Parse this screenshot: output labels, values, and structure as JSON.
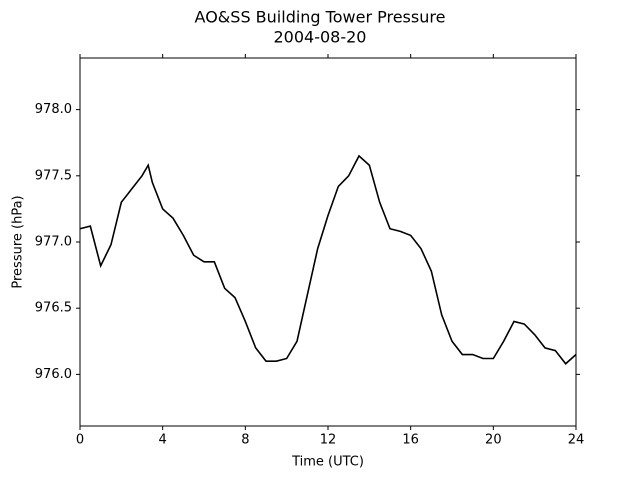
{
  "chart_data": {
    "type": "line",
    "title": "AO&SS Building Tower Pressure",
    "subtitle": "2004-08-20",
    "x_label": "Time (UTC)",
    "y_label": "Pressure (hPa)",
    "x": [
      0,
      0.5,
      1,
      1.5,
      2,
      2.5,
      3,
      3.3,
      3.5,
      4,
      4.5,
      5,
      5.5,
      6,
      6.5,
      7,
      7.5,
      8,
      8.5,
      9,
      9.5,
      10,
      10.5,
      11,
      11.5,
      12,
      12.5,
      13,
      13.5,
      14,
      14.5,
      15,
      15.5,
      16,
      16.5,
      17,
      17.5,
      18,
      18.5,
      19,
      19.5,
      20,
      20.5,
      21,
      21.5,
      22,
      22.5,
      23,
      23.5,
      24
    ],
    "series": [
      {
        "name": "Pressure",
        "color": "#000000",
        "values": [
          977.1,
          977.12,
          976.82,
          976.98,
          977.3,
          977.4,
          977.5,
          977.58,
          977.45,
          977.25,
          977.18,
          977.05,
          976.9,
          976.85,
          976.85,
          976.65,
          976.58,
          976.4,
          976.2,
          976.1,
          976.1,
          976.12,
          976.25,
          976.6,
          976.95,
          977.2,
          977.42,
          977.5,
          977.65,
          977.58,
          977.3,
          977.1,
          977.08,
          977.05,
          976.95,
          976.78,
          976.45,
          976.25,
          976.15,
          976.15,
          976.12,
          976.12,
          976.25,
          976.4,
          976.38,
          976.3,
          976.2,
          976.18,
          976.08,
          976.15
        ]
      }
    ],
    "xlim": [
      0,
      24
    ],
    "xticks": [
      0,
      4,
      8,
      12,
      16,
      20,
      24
    ],
    "ylim": [
      975.61,
      978.39
    ],
    "yticks": [
      {
        "value": 976,
        "label": "976.0"
      },
      {
        "value": 976.5,
        "label": "976.5"
      },
      {
        "value": 977,
        "label": "977.0"
      },
      {
        "value": 977.5,
        "label": "977.5"
      },
      {
        "value": 978,
        "label": "978.0"
      }
    ],
    "grid": false
  }
}
